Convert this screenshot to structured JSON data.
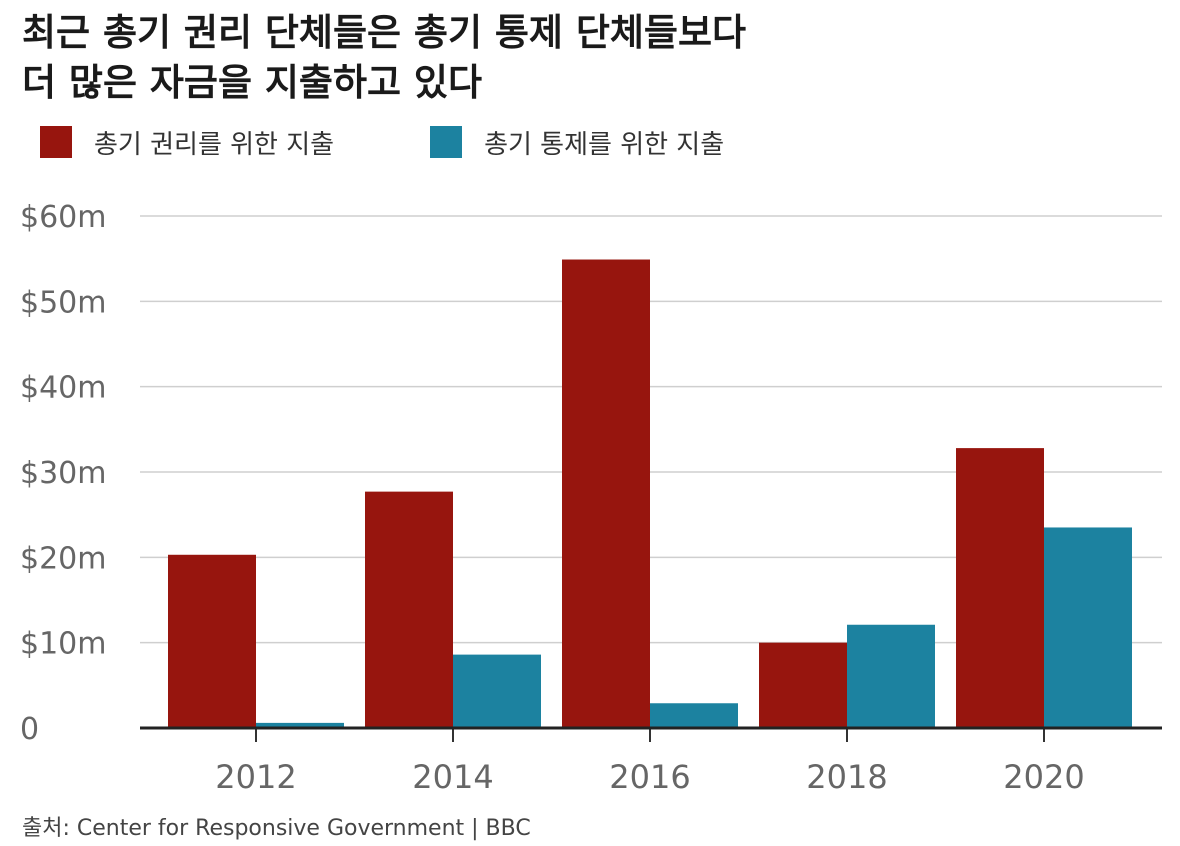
{
  "title": {
    "line1": "최근 총기 권리 단체들은 총기 통제 단체들보다",
    "line2": "더 많은 자금을 지출하고 있다"
  },
  "colors": {
    "gun_rights": "#97150e",
    "gun_control": "#1c82a0"
  },
  "source": "출처: Center for Responsive Government | BBC",
  "chart_data": {
    "type": "bar",
    "title": "최근 총기 권리 단체들은 총기 통제 단체들보다 더 많은 자금을 지출하고 있다",
    "xlabel": "",
    "ylabel": "",
    "categories": [
      "2012",
      "2014",
      "2016",
      "2018",
      "2020"
    ],
    "series": [
      {
        "name": "총기 권리를 위한 지출",
        "color": "#97150e",
        "values": [
          20.3,
          27.7,
          54.9,
          10.0,
          32.8
        ]
      },
      {
        "name": "총기 통제를 위한 지출",
        "color": "#1c82a0",
        "values": [
          0.6,
          8.6,
          2.9,
          12.1,
          23.5
        ]
      }
    ],
    "ylim": [
      0,
      60
    ],
    "y_ticks": [
      0,
      10,
      20,
      30,
      40,
      50,
      60
    ],
    "y_tick_labels": [
      "0",
      "$10m",
      "$20m",
      "$30m",
      "$40m",
      "$50m",
      "$60m"
    ],
    "grid": true,
    "legend": "top-left"
  }
}
